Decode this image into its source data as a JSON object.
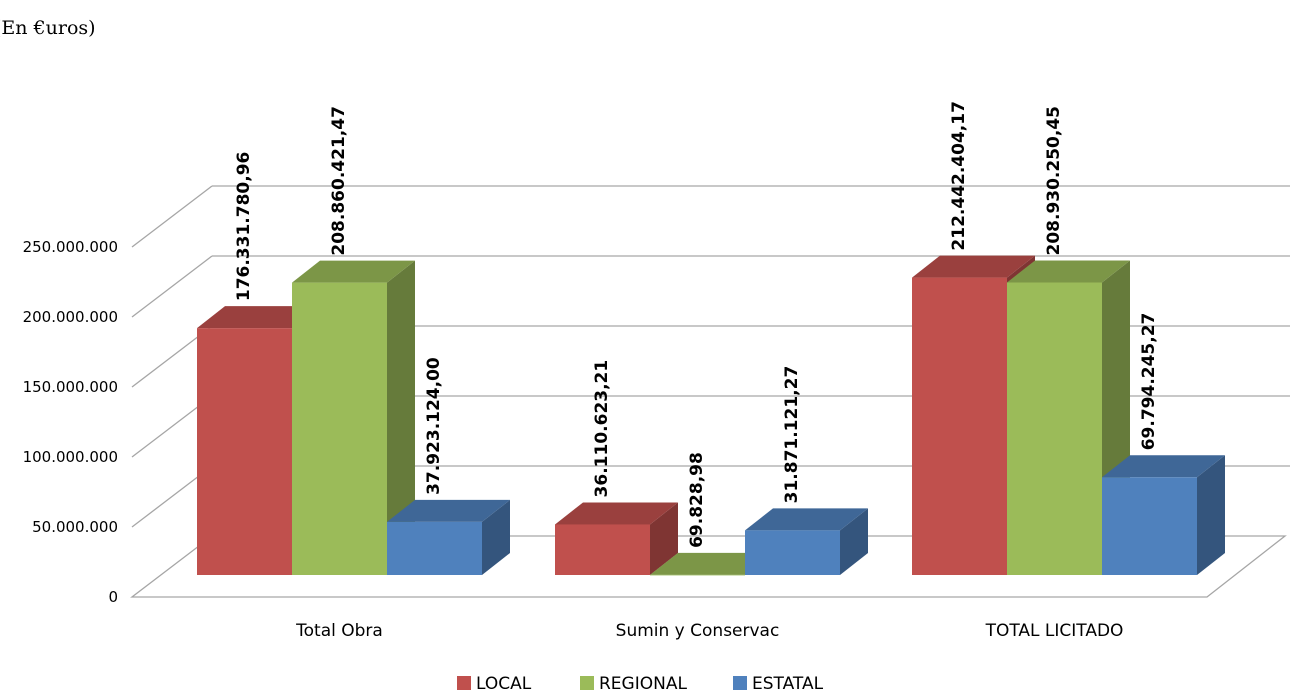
{
  "chart_data": {
    "type": "bar",
    "title": "(En €uros)",
    "xlabel": "",
    "ylabel": "",
    "categories": [
      "Total Obra",
      "Sumin y Conservac",
      "TOTAL LICITADO"
    ],
    "series": [
      {
        "name": "LOCAL",
        "values": [
          176331780.96,
          36110623.21,
          212442404.17
        ],
        "labels": [
          "176.331.780,96",
          "36.110.623,21",
          "212.442.404,17"
        ],
        "color": "#c0504d"
      },
      {
        "name": "REGIONAL",
        "values": [
          208860421.47,
          69828.98,
          208930250.45
        ],
        "labels": [
          "208.860.421,47",
          "69.828,98",
          "208.930.250,45"
        ],
        "color": "#9bbb59"
      },
      {
        "name": "ESTATAL",
        "values": [
          37923124.0,
          31871121.27,
          69794245.27
        ],
        "labels": [
          "37.923.124,00",
          "31.871.121,27",
          "69.794.245,27"
        ],
        "color": "#4f81bd"
      }
    ],
    "ylim": [
      0,
      250000000
    ],
    "yticks": [
      0,
      50000000,
      100000000,
      150000000,
      200000000,
      250000000
    ],
    "ytick_labels": [
      "0",
      "50.000.000",
      "100.000.000",
      "150.000.000",
      "200.000.000",
      "250.000.000"
    ],
    "grid": true,
    "legend_position": "bottom",
    "style": "3d-clustered-column"
  }
}
